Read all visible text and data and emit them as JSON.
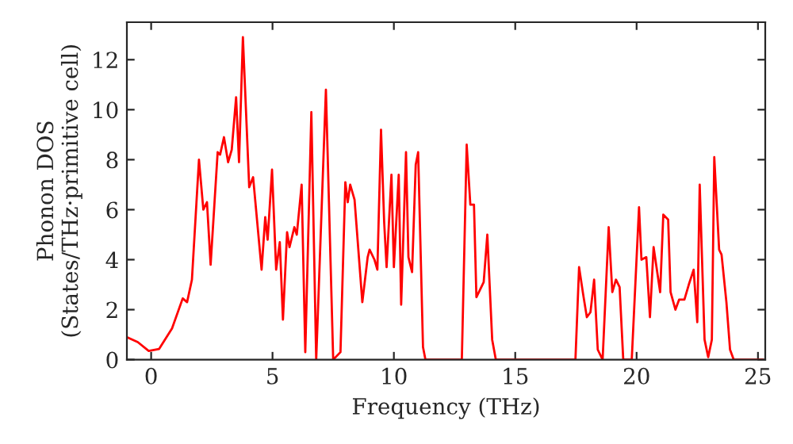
{
  "chart_data": {
    "type": "line",
    "xlabel": "Frequency (THz)",
    "ylabel": "Phonon DOS\n(States/THz·primitive cell)",
    "xlim": [
      -1,
      25.3
    ],
    "ylim": [
      0,
      13.5
    ],
    "xticks": [
      0,
      5,
      10,
      15,
      20,
      25
    ],
    "yticks": [
      0,
      2,
      4,
      6,
      8,
      10,
      12
    ],
    "grid": false,
    "series": [
      {
        "color": "#ff0000",
        "x": [
          -1.0,
          -0.55,
          -0.1,
          0.33,
          0.86,
          1.3,
          1.48,
          1.68,
          1.97,
          2.15,
          2.3,
          2.45,
          2.74,
          2.84,
          3.0,
          3.17,
          3.32,
          3.5,
          3.62,
          3.78,
          4.04,
          4.2,
          4.55,
          4.7,
          4.8,
          4.98,
          5.15,
          5.3,
          5.43,
          5.6,
          5.7,
          5.9,
          6.0,
          6.2,
          6.35,
          6.6,
          6.8,
          7.2,
          7.5,
          7.8,
          8.0,
          8.1,
          8.2,
          8.38,
          8.7,
          8.92,
          9.0,
          9.2,
          9.32,
          9.47,
          9.6,
          9.7,
          9.9,
          10.0,
          10.2,
          10.3,
          10.5,
          10.6,
          10.75,
          10.9,
          11.0,
          11.2,
          11.3,
          12.8,
          13.0,
          13.15,
          13.3,
          13.4,
          13.7,
          13.85,
          14.05,
          14.2,
          17.48,
          17.63,
          17.8,
          17.95,
          18.1,
          18.25,
          18.4,
          18.6,
          18.85,
          19.0,
          19.15,
          19.3,
          19.45,
          19.8,
          20.1,
          20.2,
          20.4,
          20.55,
          20.7,
          20.97,
          21.1,
          21.3,
          21.4,
          21.6,
          21.75,
          21.97,
          22.15,
          22.35,
          22.5,
          22.6,
          22.8,
          22.95,
          23.1,
          23.2,
          23.4,
          23.5,
          23.7,
          23.85,
          24.0,
          25.2
        ],
        "values": [
          0.9,
          0.7,
          0.35,
          0.43,
          1.25,
          2.45,
          2.3,
          3.2,
          8.0,
          6.0,
          6.3,
          3.8,
          8.3,
          8.2,
          8.9,
          7.9,
          8.4,
          10.5,
          7.9,
          12.9,
          6.9,
          7.3,
          3.6,
          5.7,
          4.8,
          7.6,
          3.6,
          4.7,
          1.6,
          5.1,
          4.5,
          5.3,
          5.0,
          7.0,
          0.3,
          9.9,
          0.0,
          10.8,
          0.0,
          0.3,
          7.1,
          6.3,
          7.0,
          6.4,
          2.3,
          4.1,
          4.4,
          4.0,
          3.6,
          9.2,
          5.5,
          3.7,
          7.4,
          3.7,
          7.4,
          2.2,
          8.3,
          4.1,
          3.5,
          7.8,
          8.3,
          0.5,
          0.0,
          0.0,
          8.6,
          6.2,
          6.2,
          2.5,
          3.1,
          5.0,
          0.8,
          0.0,
          0.0,
          3.7,
          2.6,
          1.7,
          1.9,
          3.2,
          0.4,
          0.0,
          5.3,
          2.7,
          3.2,
          2.9,
          0.0,
          0.0,
          6.1,
          4.0,
          4.1,
          1.7,
          4.5,
          2.7,
          5.8,
          5.6,
          2.7,
          2.0,
          2.4,
          2.4,
          3.0,
          3.6,
          1.5,
          7.0,
          0.8,
          0.1,
          0.8,
          8.1,
          4.4,
          4.2,
          2.3,
          0.4,
          0.0,
          0.0
        ]
      }
    ]
  }
}
